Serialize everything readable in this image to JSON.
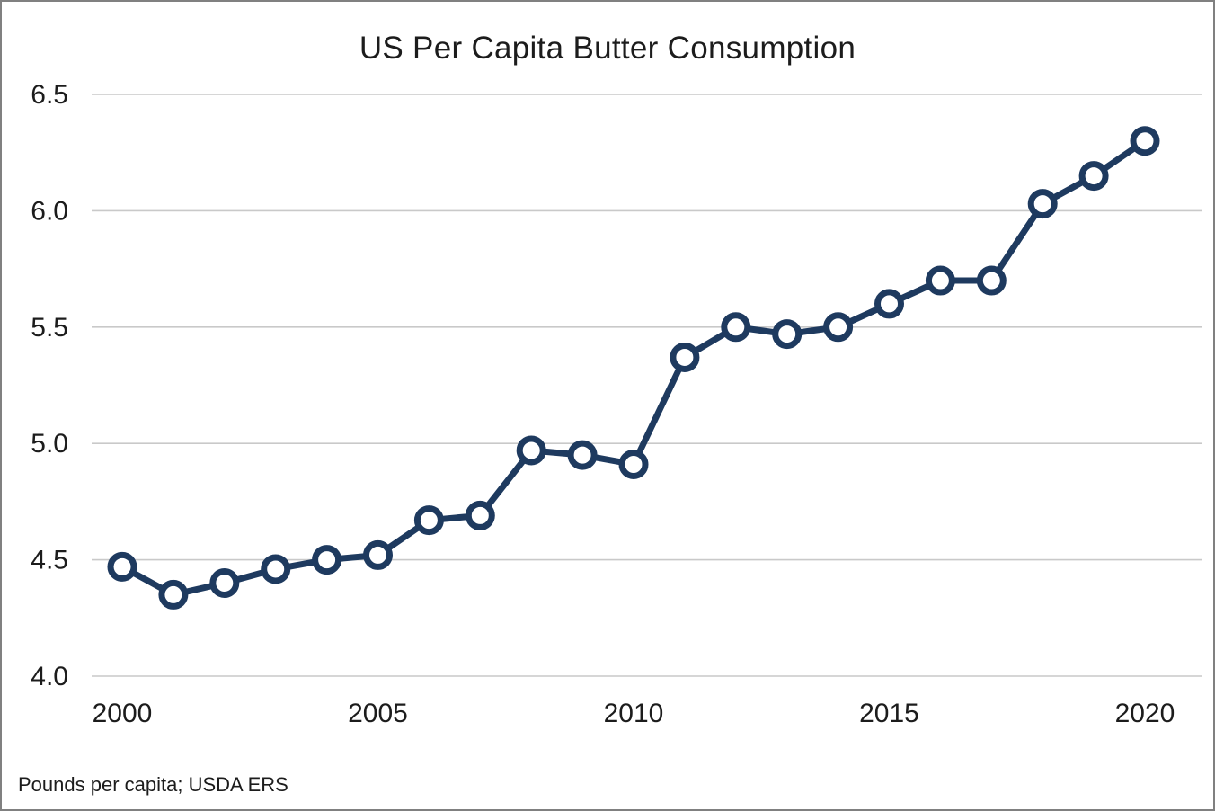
{
  "chart_data": {
    "type": "line",
    "title": "US Per Capita Butter Consumption",
    "caption": "Pounds per capita; USDA ERS",
    "xlabel": "",
    "ylabel": "",
    "x": [
      2000,
      2001,
      2002,
      2003,
      2004,
      2005,
      2006,
      2007,
      2008,
      2009,
      2010,
      2011,
      2012,
      2013,
      2014,
      2015,
      2016,
      2017,
      2018,
      2019,
      2020
    ],
    "series": [
      {
        "name": "US per capita butter consumption (pounds)",
        "values": [
          4.47,
          4.35,
          4.4,
          4.46,
          4.5,
          4.52,
          4.67,
          4.69,
          4.97,
          4.95,
          4.91,
          5.37,
          5.5,
          5.47,
          5.5,
          5.6,
          5.7,
          5.7,
          6.03,
          6.15,
          6.3
        ]
      }
    ],
    "xlim": [
      2000,
      2020
    ],
    "ylim": [
      4.0,
      6.5
    ],
    "x_ticks": [
      2000,
      2005,
      2010,
      2015,
      2020
    ],
    "y_ticks": [
      "4.0",
      "4.5",
      "5.0",
      "5.5",
      "6.0",
      "6.5"
    ],
    "grid": "horizontal-only",
    "legend": "none",
    "colors": {
      "line": "#1e3a5f",
      "marker_fill": "#ffffff",
      "gridline": "#c9c9c9",
      "text": "#1c1c1c",
      "frame_border": "#808080",
      "background": "#ffffff"
    },
    "marker_style": "open-circle"
  }
}
